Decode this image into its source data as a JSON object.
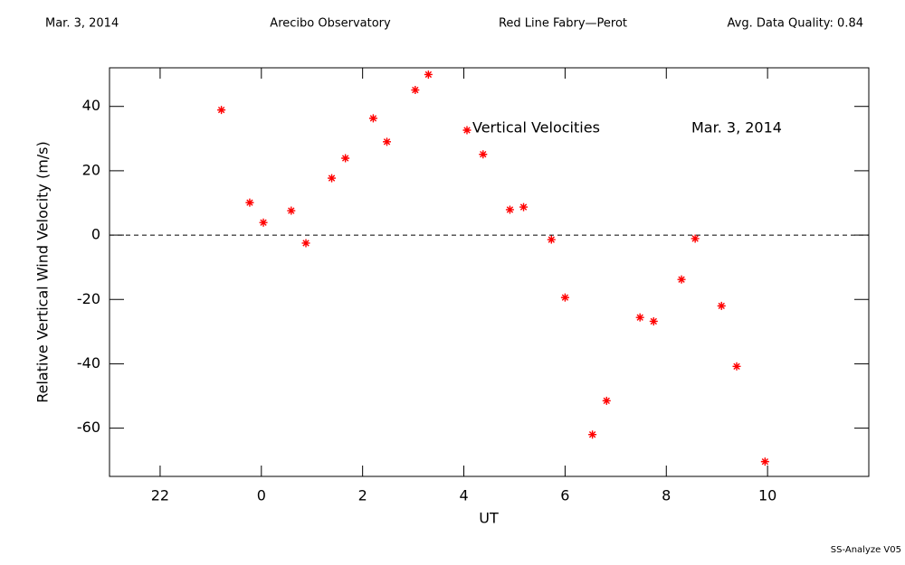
{
  "header": [
    "Mar. 3, 2014",
    "Arecibo Observatory",
    "Red Line Fabry—Perot",
    "Avg. Data Quality: 0.84"
  ],
  "footer": "SS-Analyze V05",
  "chart_data": {
    "type": "scatter",
    "xlabel": "UT",
    "ylabel": "Relative Vertical Wind Velocity (m/s)",
    "annotation": "Mar. 3, 2014",
    "series": [
      {
        "name": "Vertical Velocities",
        "color": "#ff0000",
        "x": [
          -0.79,
          -0.23,
          0.04,
          0.59,
          0.88,
          1.39,
          1.66,
          2.21,
          2.48,
          3.04,
          3.3,
          4.38,
          4.91,
          5.18,
          5.73,
          6.0,
          6.54,
          6.82,
          7.48,
          7.75,
          8.3,
          8.57,
          9.09,
          9.39,
          9.95
        ],
        "values": [
          38.9,
          10.1,
          3.9,
          7.6,
          -2.5,
          17.7,
          23.9,
          36.3,
          29.0,
          45.1,
          49.9,
          25.1,
          7.9,
          8.7,
          -1.4,
          -19.4,
          -62.0,
          -51.5,
          -25.6,
          -26.8,
          -13.8,
          -1.1,
          -22.0,
          -40.8,
          -70.4
        ]
      }
    ],
    "xlim": [
      -3,
      12
    ],
    "xticks": [
      {
        "value": -2,
        "label": "22"
      },
      0,
      2,
      4,
      6,
      8,
      10
    ],
    "ylim": [
      -75,
      52
    ],
    "yticks": [
      -60,
      -40,
      -20,
      0,
      20,
      40
    ],
    "hline": 0
  }
}
